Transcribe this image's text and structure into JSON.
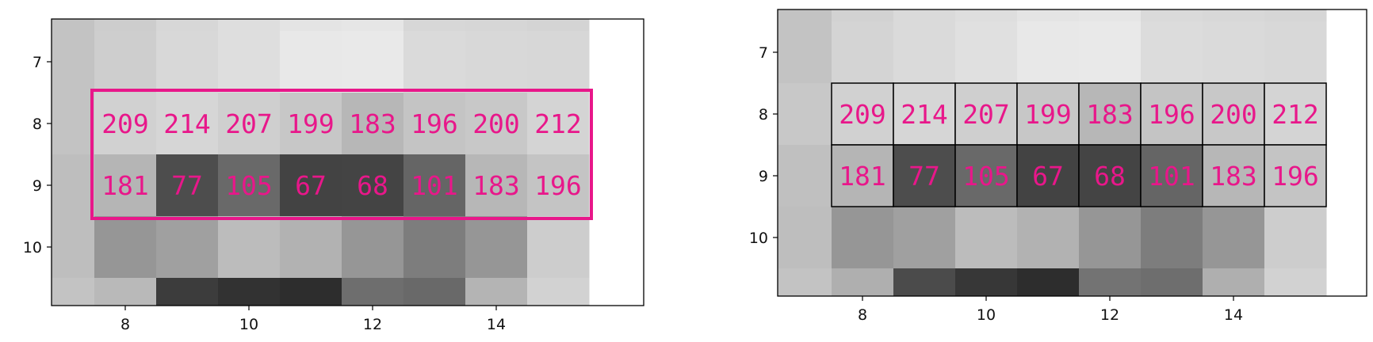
{
  "chart_data": [
    {
      "type": "heatmap",
      "colormap": "gray",
      "x_ticks": [
        8,
        10,
        12,
        14
      ],
      "y_ticks": [
        7,
        8,
        9,
        10
      ],
      "xlim": [
        6.5,
        15.5
      ],
      "ylim": [
        11,
        6.5
      ],
      "grid": false,
      "highlight": {
        "color": "#e8178a",
        "x_range": [
          8,
          15
        ],
        "y_range": [
          8,
          9
        ]
      },
      "annotation_color": "#e8178a",
      "rows": [
        {
          "y": 6.5,
          "values": [
            150,
            195,
            205,
            215,
            222,
            228,
            230,
            215,
            214,
            212
          ]
        },
        {
          "y": 7,
          "values": [
            155,
            195,
            206,
            216,
            222,
            232,
            233,
            218,
            216,
            215
          ]
        },
        {
          "y": 8,
          "values": [
            140,
            195,
            209,
            214,
            207,
            199,
            183,
            196,
            200,
            212
          ]
        },
        {
          "y": 9,
          "values": [
            165,
            190,
            181,
            77,
            105,
            67,
            68,
            101,
            183,
            196
          ]
        },
        {
          "y": 10,
          "values": [
            200,
            190,
            150,
            160,
            188,
            178,
            150,
            125,
            150,
            205
          ]
        },
        {
          "y": 11,
          "values": [
            195,
            195,
            185,
            60,
            50,
            45,
            110,
            105,
            180,
            210
          ]
        }
      ],
      "cell_labels": [
        {
          "x": 8,
          "y": 8,
          "text": "209"
        },
        {
          "x": 9,
          "y": 8,
          "text": "214"
        },
        {
          "x": 10,
          "y": 8,
          "text": "207"
        },
        {
          "x": 11,
          "y": 8,
          "text": "199"
        },
        {
          "x": 12,
          "y": 8,
          "text": "183"
        },
        {
          "x": 13,
          "y": 8,
          "text": "196"
        },
        {
          "x": 14,
          "y": 8,
          "text": "200"
        },
        {
          "x": 15,
          "y": 8,
          "text": "212"
        },
        {
          "x": 8,
          "y": 9,
          "text": "181"
        },
        {
          "x": 9,
          "y": 9,
          "text": "77"
        },
        {
          "x": 10,
          "y": 9,
          "text": "105"
        },
        {
          "x": 11,
          "y": 9,
          "text": "67"
        },
        {
          "x": 12,
          "y": 9,
          "text": "68"
        },
        {
          "x": 13,
          "y": 9,
          "text": "101"
        },
        {
          "x": 14,
          "y": 9,
          "text": "183"
        },
        {
          "x": 15,
          "y": 9,
          "text": "196"
        }
      ]
    },
    {
      "type": "heatmap",
      "colormap": "gray",
      "x_ticks": [
        8,
        10,
        12,
        14
      ],
      "y_ticks": [
        7,
        8,
        9,
        10
      ],
      "xlim": [
        6.5,
        15.5
      ],
      "ylim": [
        11,
        6.5
      ],
      "grid": false,
      "annotation_color": "#e8178a",
      "rows": [
        {
          "y": 6.5,
          "values": [
            150,
            195,
            210,
            218,
            222,
            228,
            230,
            218,
            216,
            214
          ]
        },
        {
          "y": 7,
          "values": [
            155,
            195,
            212,
            218,
            224,
            232,
            233,
            220,
            218,
            216
          ]
        },
        {
          "y": 8,
          "values": [
            160,
            200,
            209,
            214,
            207,
            199,
            183,
            196,
            200,
            212
          ]
        },
        {
          "y": 9,
          "values": [
            165,
            192,
            181,
            77,
            105,
            67,
            68,
            101,
            183,
            196
          ]
        },
        {
          "y": 10,
          "values": [
            195,
            190,
            150,
            160,
            188,
            178,
            150,
            125,
            150,
            205
          ]
        },
        {
          "y": 11,
          "values": [
            195,
            195,
            175,
            75,
            55,
            45,
            115,
            110,
            175,
            210
          ]
        }
      ],
      "overlay_cells": [
        {
          "x": 8,
          "y": 8,
          "value": 209,
          "text": "209"
        },
        {
          "x": 9,
          "y": 8,
          "value": 214,
          "text": "214"
        },
        {
          "x": 10,
          "y": 8,
          "value": 207,
          "text": "207"
        },
        {
          "x": 11,
          "y": 8,
          "value": 199,
          "text": "199"
        },
        {
          "x": 12,
          "y": 8,
          "value": 183,
          "text": "183"
        },
        {
          "x": 13,
          "y": 8,
          "value": 196,
          "text": "196"
        },
        {
          "x": 14,
          "y": 8,
          "value": 200,
          "text": "200"
        },
        {
          "x": 15,
          "y": 8,
          "value": 212,
          "text": "212"
        },
        {
          "x": 8,
          "y": 9,
          "value": 181,
          "text": "181"
        },
        {
          "x": 9,
          "y": 9,
          "value": 77,
          "text": "77"
        },
        {
          "x": 10,
          "y": 9,
          "value": 105,
          "text": "105"
        },
        {
          "x": 11,
          "y": 9,
          "value": 67,
          "text": "67"
        },
        {
          "x": 12,
          "y": 9,
          "value": 68,
          "text": "68"
        },
        {
          "x": 13,
          "y": 9,
          "value": 101,
          "text": "101"
        },
        {
          "x": 14,
          "y": 9,
          "value": 183,
          "text": "183"
        },
        {
          "x": 15,
          "y": 9,
          "value": 196,
          "text": "196"
        }
      ]
    }
  ]
}
